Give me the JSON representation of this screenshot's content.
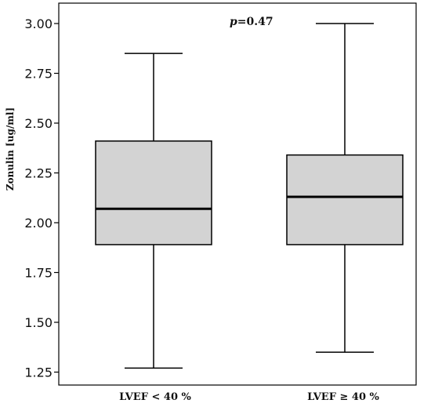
{
  "chart_data": {
    "type": "box",
    "title": "",
    "xlabel": "",
    "ylabel": "Zonulin [ug/ml]",
    "ylim": [
      1.2,
      3.07
    ],
    "yticks": [
      "1.25",
      "1.50",
      "1.75",
      "2.00",
      "2.25",
      "2.50",
      "2.75",
      "3.00"
    ],
    "categories": [
      "LVEF < 40 %",
      "LVEF ≥ 40 %"
    ],
    "boxes": [
      {
        "min": 1.27,
        "q1": 1.89,
        "median": 2.07,
        "q3": 2.41,
        "max": 2.85
      },
      {
        "min": 1.35,
        "q1": 1.89,
        "median": 2.13,
        "q3": 2.34,
        "max": 3.0
      }
    ],
    "annotation": {
      "italic": "p",
      "rest": "=0.47"
    },
    "colors": {
      "box_fill": "#d3d3d3",
      "line": "#000000"
    },
    "grid": false,
    "legend": "none"
  }
}
